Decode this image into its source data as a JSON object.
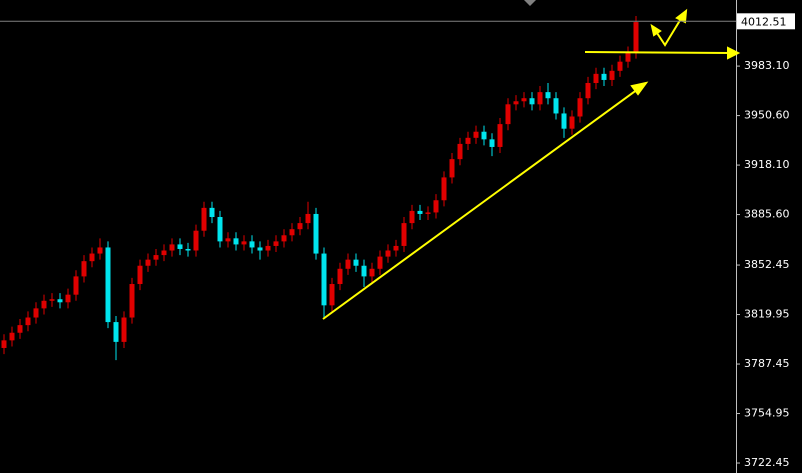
{
  "chart_data": {
    "type": "candlestick",
    "open": [
      3798,
      3803,
      3808,
      3813,
      3818,
      3824,
      3829,
      3830,
      3828,
      3833,
      3845,
      3855,
      3860,
      3864,
      3815,
      3802,
      3818,
      3840,
      3852,
      3856,
      3859,
      3862,
      3866,
      3863,
      3862,
      3875,
      3890,
      3884,
      3868,
      3870,
      3866,
      3868,
      3864,
      3862,
      3865,
      3868,
      3872,
      3876,
      3880,
      3886,
      3860,
      3826,
      3840,
      3850,
      3856,
      3852,
      3845,
      3850,
      3858,
      3862,
      3865,
      3880,
      3888,
      3886,
      3887,
      3895,
      3910,
      3922,
      3932,
      3936,
      3940,
      3935,
      3930,
      3945,
      3958,
      3960,
      3962,
      3958,
      3966,
      3962,
      3952,
      3942,
      3950,
      3962,
      3972,
      3978,
      3974,
      3980,
      3986,
      3992
    ],
    "high": [
      3807,
      3812,
      3817,
      3822,
      3828,
      3833,
      3834,
      3834,
      3837,
      3849,
      3859,
      3864,
      3870,
      3868,
      3819,
      3822,
      3844,
      3856,
      3860,
      3863,
      3866,
      3870,
      3870,
      3867,
      3879,
      3894,
      3894,
      3888,
      3874,
      3874,
      3872,
      3872,
      3868,
      3869,
      3872,
      3876,
      3880,
      3884,
      3894,
      3890,
      3864,
      3844,
      3854,
      3860,
      3860,
      3856,
      3854,
      3862,
      3866,
      3869,
      3884,
      3892,
      3892,
      3891,
      3899,
      3914,
      3926,
      3936,
      3940,
      3944,
      3944,
      3939,
      3949,
      3962,
      3964,
      3966,
      3966,
      3970,
      3972,
      3966,
      3956,
      3954,
      3966,
      3976,
      3982,
      3982,
      3984,
      3990,
      3996,
      4016
    ],
    "low": [
      3794,
      3799,
      3804,
      3809,
      3814,
      3820,
      3825,
      3824,
      3824,
      3829,
      3841,
      3851,
      3856,
      3811,
      3790,
      3798,
      3814,
      3836,
      3848,
      3852,
      3855,
      3858,
      3859,
      3858,
      3858,
      3871,
      3880,
      3864,
      3864,
      3862,
      3862,
      3860,
      3856,
      3858,
      3861,
      3864,
      3868,
      3872,
      3876,
      3856,
      3818,
      3822,
      3836,
      3846,
      3848,
      3838,
      3841,
      3846,
      3854,
      3858,
      3861,
      3876,
      3882,
      3882,
      3883,
      3891,
      3906,
      3918,
      3928,
      3932,
      3931,
      3924,
      3926,
      3941,
      3954,
      3956,
      3954,
      3954,
      3958,
      3948,
      3936,
      3938,
      3946,
      3958,
      3968,
      3970,
      3970,
      3976,
      3982,
      3988
    ],
    "close": [
      3803,
      3808,
      3813,
      3818,
      3824,
      3829,
      3830,
      3828,
      3833,
      3845,
      3855,
      3860,
      3864,
      3815,
      3802,
      3818,
      3840,
      3852,
      3856,
      3859,
      3862,
      3866,
      3863,
      3862,
      3875,
      3890,
      3884,
      3868,
      3870,
      3866,
      3868,
      3864,
      3862,
      3865,
      3868,
      3872,
      3876,
      3880,
      3886,
      3860,
      3826,
      3840,
      3850,
      3856,
      3852,
      3845,
      3850,
      3858,
      3862,
      3865,
      3880,
      3888,
      3886,
      3887,
      3895,
      3910,
      3922,
      3932,
      3936,
      3940,
      3935,
      3930,
      3945,
      3958,
      3960,
      3962,
      3958,
      3966,
      3962,
      3952,
      3942,
      3950,
      3962,
      3972,
      3978,
      3974,
      3980,
      3986,
      3992,
      4012
    ],
    "up_color": "#e00000",
    "down_color": "#00e5ee",
    "ylim": [
      3715.9,
      4026.5
    ],
    "yticks": [
      3722.45,
      3754.95,
      3787.45,
      3819.95,
      3852.45,
      {
        "value": 3885.6,
        "label": "3885.60"
      },
      {
        "value": 3918.1,
        "label": "3918.10"
      },
      {
        "value": 3950.6,
        "label": "3950.60"
      },
      {
        "value": 3983.1,
        "label": "3983.10"
      }
    ],
    "last_price": 4012.51
  }
}
